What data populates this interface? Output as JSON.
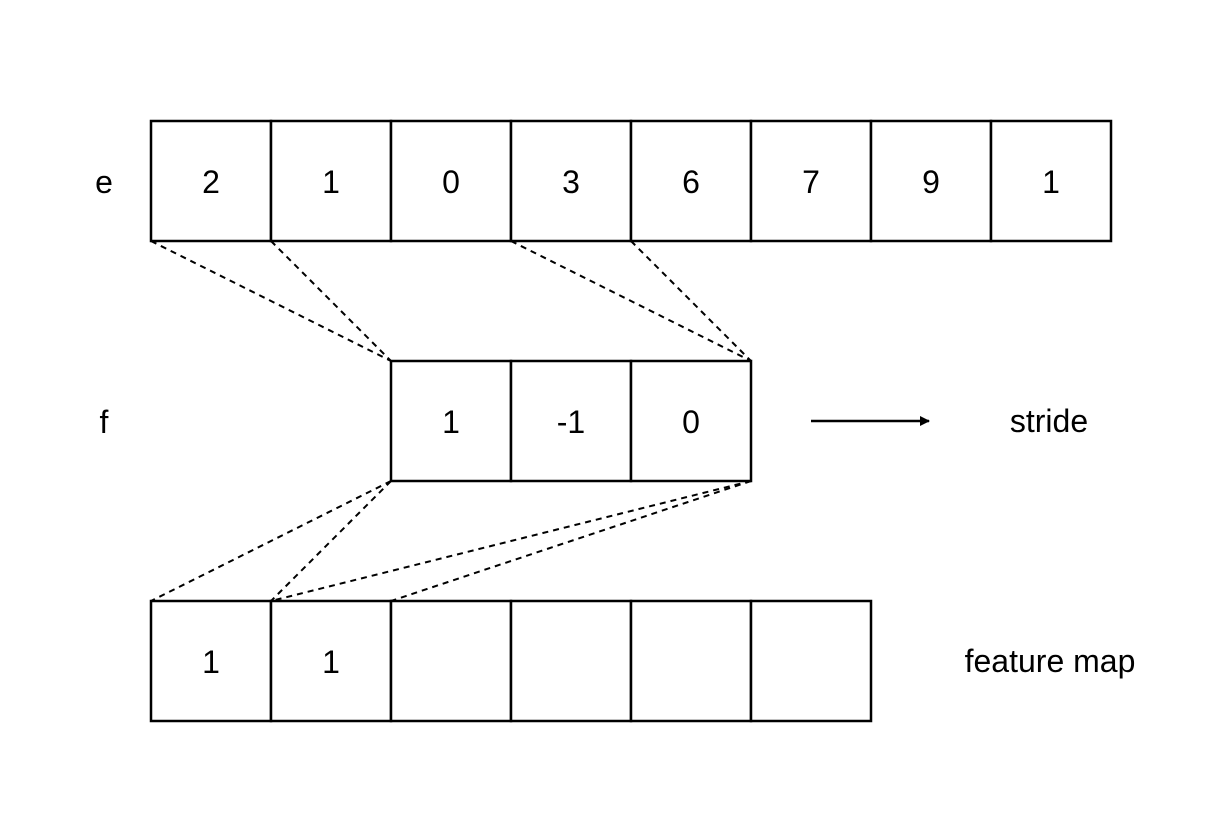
{
  "rows": {
    "input": {
      "label": "e",
      "values": [
        "2",
        "1",
        "0",
        "3",
        "6",
        "7",
        "9",
        "1"
      ]
    },
    "filter": {
      "label": "f",
      "values": [
        "1",
        "-1",
        "0"
      ]
    },
    "output": {
      "label": "feature map",
      "values": [
        "1",
        "1",
        "",
        "",
        "",
        ""
      ]
    }
  },
  "arrow": {
    "label": "stride",
    "direction": "right"
  }
}
